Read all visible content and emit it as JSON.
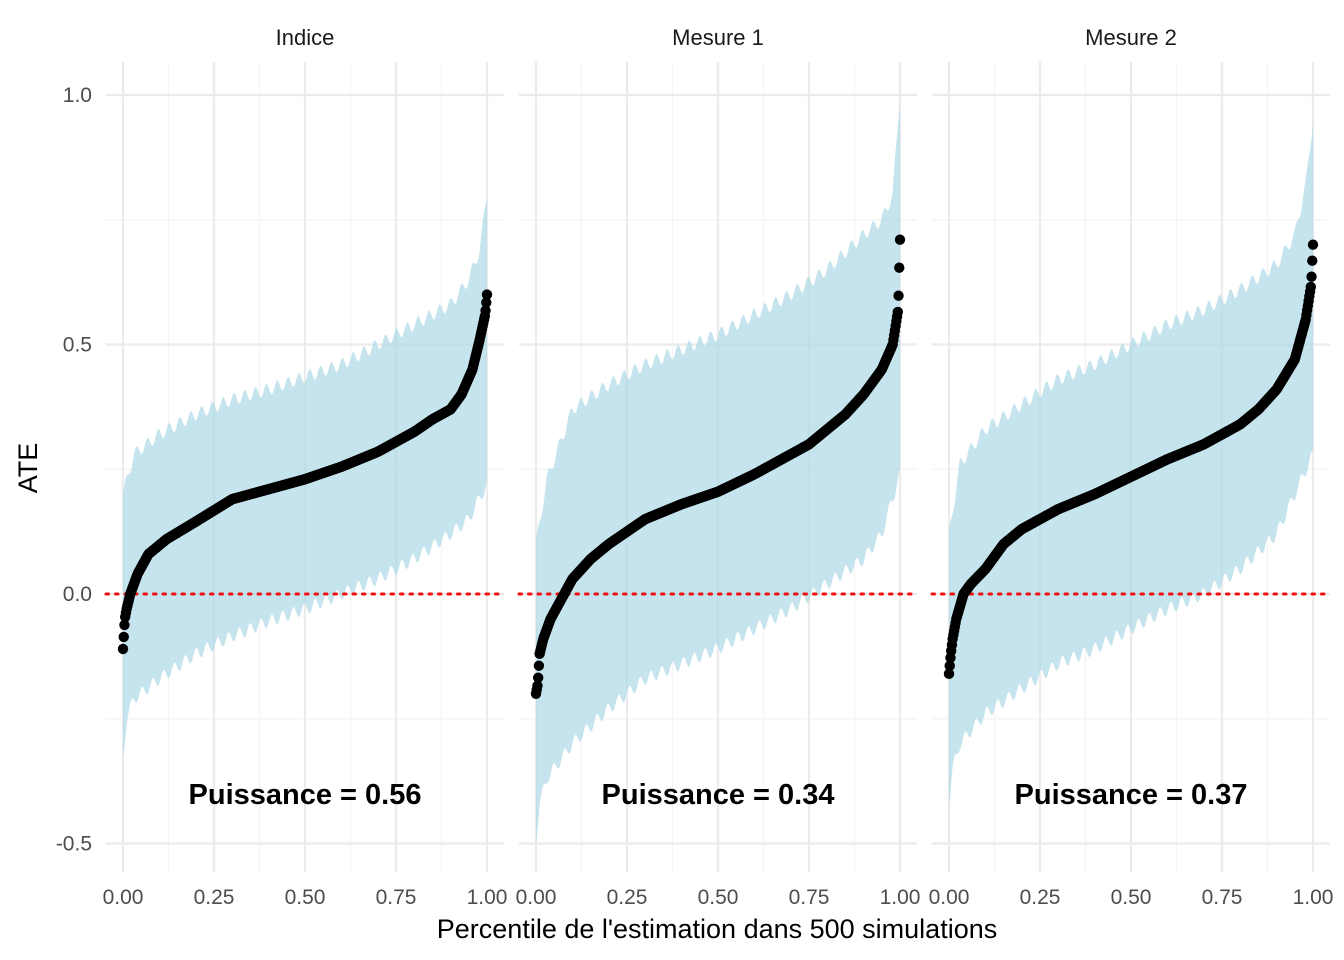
{
  "chart_data": {
    "type": "scatter",
    "xlabel": "Percentile de l'estimation dans 500 simulations",
    "ylabel": "ATE",
    "xlim": [
      0,
      1
    ],
    "ylim": [
      -0.55,
      1.07
    ],
    "x_ticks": [
      "0.00",
      "0.25",
      "0.50",
      "0.75",
      "1.00"
    ],
    "y_ticks": [
      "-0.5",
      "0.0",
      "0.5",
      "1.0"
    ],
    "y_tick_values": [
      -0.5,
      0.0,
      0.5,
      1.0
    ],
    "reference_line": {
      "y": 0,
      "style": "dotted",
      "color": "#ee1111"
    },
    "colors": {
      "points": "#000000",
      "interval": "#add8e6",
      "reference": "#ee1111"
    },
    "grid": true,
    "legend": "none",
    "n_simulations": 500,
    "panels": [
      {
        "facet": "Indice",
        "annotation": "Puissance = 0.56",
        "estimate_curve": [
          [
            0,
            -0.11
          ],
          [
            0.005,
            -0.05
          ],
          [
            0.01,
            -0.03
          ],
          [
            0.02,
            0.0
          ],
          [
            0.04,
            0.04
          ],
          [
            0.07,
            0.08
          ],
          [
            0.12,
            0.11
          ],
          [
            0.2,
            0.145
          ],
          [
            0.3,
            0.19
          ],
          [
            0.4,
            0.21
          ],
          [
            0.5,
            0.23
          ],
          [
            0.6,
            0.255
          ],
          [
            0.7,
            0.285
          ],
          [
            0.8,
            0.325
          ],
          [
            0.85,
            0.35
          ],
          [
            0.9,
            0.37
          ],
          [
            0.93,
            0.4
          ],
          [
            0.96,
            0.45
          ],
          [
            0.98,
            0.51
          ],
          [
            0.995,
            0.56
          ],
          [
            1.0,
            0.6
          ]
        ],
        "lower_curve": [
          [
            0,
            -0.33
          ],
          [
            0.01,
            -0.25
          ],
          [
            0.03,
            -0.21
          ],
          [
            0.1,
            -0.17
          ],
          [
            0.2,
            -0.12
          ],
          [
            0.3,
            -0.085
          ],
          [
            0.4,
            -0.055
          ],
          [
            0.5,
            -0.03
          ],
          [
            0.6,
            0.0
          ],
          [
            0.7,
            0.03
          ],
          [
            0.8,
            0.07
          ],
          [
            0.9,
            0.12
          ],
          [
            0.95,
            0.15
          ],
          [
            1.0,
            0.22
          ]
        ],
        "upper_curve": [
          [
            0,
            0.2
          ],
          [
            0.03,
            0.28
          ],
          [
            0.1,
            0.32
          ],
          [
            0.2,
            0.36
          ],
          [
            0.3,
            0.39
          ],
          [
            0.4,
            0.41
          ],
          [
            0.5,
            0.435
          ],
          [
            0.6,
            0.46
          ],
          [
            0.7,
            0.5
          ],
          [
            0.8,
            0.54
          ],
          [
            0.9,
            0.58
          ],
          [
            0.95,
            0.63
          ],
          [
            0.98,
            0.69
          ],
          [
            1.0,
            0.8
          ]
        ]
      },
      {
        "facet": "Mesure 1",
        "annotation": "Puissance = 0.34",
        "estimate_curve": [
          [
            0,
            -0.2
          ],
          [
            0.005,
            -0.18
          ],
          [
            0.01,
            -0.12
          ],
          [
            0.02,
            -0.09
          ],
          [
            0.04,
            -0.05
          ],
          [
            0.07,
            -0.01
          ],
          [
            0.1,
            0.03
          ],
          [
            0.15,
            0.07
          ],
          [
            0.2,
            0.1
          ],
          [
            0.3,
            0.15
          ],
          [
            0.4,
            0.18
          ],
          [
            0.5,
            0.205
          ],
          [
            0.6,
            0.24
          ],
          [
            0.7,
            0.28
          ],
          [
            0.75,
            0.3
          ],
          [
            0.8,
            0.33
          ],
          [
            0.85,
            0.36
          ],
          [
            0.9,
            0.4
          ],
          [
            0.95,
            0.45
          ],
          [
            0.98,
            0.5
          ],
          [
            0.995,
            0.57
          ],
          [
            1.0,
            0.71
          ]
        ],
        "lower_curve": [
          [
            0,
            -0.49
          ],
          [
            0.01,
            -0.42
          ],
          [
            0.03,
            -0.37
          ],
          [
            0.1,
            -0.3
          ],
          [
            0.2,
            -0.23
          ],
          [
            0.3,
            -0.17
          ],
          [
            0.4,
            -0.14
          ],
          [
            0.5,
            -0.11
          ],
          [
            0.6,
            -0.07
          ],
          [
            0.7,
            -0.03
          ],
          [
            0.8,
            0.02
          ],
          [
            0.9,
            0.07
          ],
          [
            0.95,
            0.12
          ],
          [
            1.0,
            0.24
          ]
        ],
        "upper_curve": [
          [
            0,
            0.1
          ],
          [
            0.03,
            0.23
          ],
          [
            0.1,
            0.37
          ],
          [
            0.2,
            0.42
          ],
          [
            0.3,
            0.46
          ],
          [
            0.4,
            0.49
          ],
          [
            0.5,
            0.52
          ],
          [
            0.6,
            0.56
          ],
          [
            0.7,
            0.6
          ],
          [
            0.8,
            0.65
          ],
          [
            0.9,
            0.72
          ],
          [
            0.95,
            0.75
          ],
          [
            0.98,
            0.8
          ],
          [
            1.0,
            1.0
          ]
        ]
      },
      {
        "facet": "Mesure 2",
        "annotation": "Puissance = 0.37",
        "estimate_curve": [
          [
            0,
            -0.16
          ],
          [
            0.005,
            -0.12
          ],
          [
            0.01,
            -0.09
          ],
          [
            0.02,
            -0.05
          ],
          [
            0.04,
            0.0
          ],
          [
            0.06,
            0.02
          ],
          [
            0.1,
            0.05
          ],
          [
            0.15,
            0.1
          ],
          [
            0.2,
            0.13
          ],
          [
            0.3,
            0.17
          ],
          [
            0.4,
            0.2
          ],
          [
            0.5,
            0.235
          ],
          [
            0.6,
            0.27
          ],
          [
            0.7,
            0.3
          ],
          [
            0.8,
            0.34
          ],
          [
            0.85,
            0.37
          ],
          [
            0.9,
            0.41
          ],
          [
            0.95,
            0.47
          ],
          [
            0.98,
            0.55
          ],
          [
            0.995,
            0.62
          ],
          [
            1.0,
            0.7
          ]
        ],
        "lower_curve": [
          [
            0,
            -0.42
          ],
          [
            0.01,
            -0.35
          ],
          [
            0.03,
            -0.3
          ],
          [
            0.1,
            -0.24
          ],
          [
            0.2,
            -0.19
          ],
          [
            0.3,
            -0.14
          ],
          [
            0.4,
            -0.11
          ],
          [
            0.5,
            -0.07
          ],
          [
            0.6,
            -0.03
          ],
          [
            0.7,
            0.0
          ],
          [
            0.8,
            0.05
          ],
          [
            0.9,
            0.12
          ],
          [
            0.95,
            0.2
          ],
          [
            1.0,
            0.28
          ]
        ],
        "upper_curve": [
          [
            0,
            0.12
          ],
          [
            0.03,
            0.26
          ],
          [
            0.1,
            0.33
          ],
          [
            0.2,
            0.38
          ],
          [
            0.3,
            0.43
          ],
          [
            0.4,
            0.46
          ],
          [
            0.5,
            0.5
          ],
          [
            0.6,
            0.54
          ],
          [
            0.7,
            0.57
          ],
          [
            0.8,
            0.61
          ],
          [
            0.9,
            0.66
          ],
          [
            0.95,
            0.72
          ],
          [
            0.98,
            0.82
          ],
          [
            1.0,
            0.95
          ]
        ]
      }
    ]
  }
}
